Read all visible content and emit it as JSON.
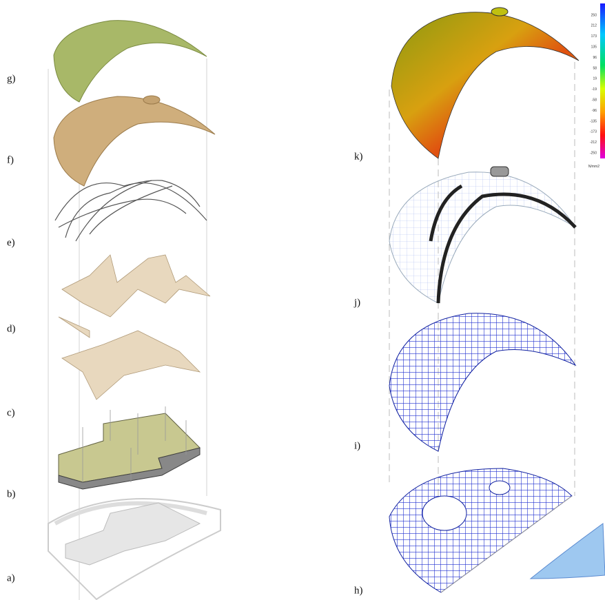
{
  "labels": {
    "a": "a)",
    "b": "b)",
    "c": "c)",
    "d": "d)",
    "e": "e)",
    "f": "f)",
    "g": "g)",
    "h": "h)",
    "i": "i)",
    "j": "j)",
    "k": "k)"
  },
  "legend": {
    "ticks": [
      250,
      212,
      173,
      135,
      96,
      58,
      19,
      -19,
      -58,
      -96,
      -135,
      -173,
      -212,
      -250
    ],
    "unit": "N/mm2"
  }
}
